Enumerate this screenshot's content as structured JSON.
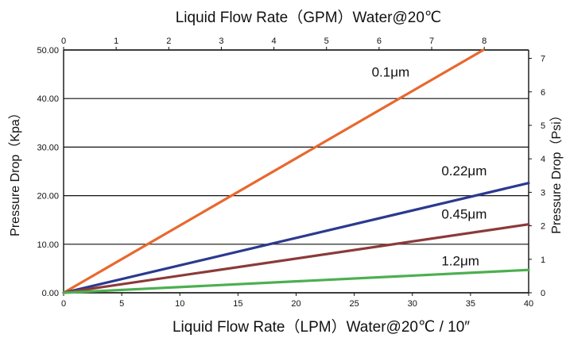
{
  "chart_data": {
    "type": "line",
    "title": "Liquid Flow Rate（GPM）Water@20℃",
    "xlabel": "Liquid Flow Rate（LPM）Water@20℃ / 10″",
    "ylabel": "Pressure Drop（Kpa）",
    "y2label": "Pressure Drop（Psi）",
    "xlim": [
      0,
      40
    ],
    "ylim": [
      0,
      50
    ],
    "x_ticks": [
      "0",
      "5",
      "10",
      "15",
      "20",
      "25",
      "30",
      "35",
      "40"
    ],
    "y_ticks": [
      "0.00",
      "10.00",
      "20.00",
      "30.00",
      "40.00",
      "50.00"
    ],
    "top_ticks": [
      "0",
      "1",
      "2",
      "3",
      "4",
      "5",
      "6",
      "7",
      "8"
    ],
    "top_axis_unit_per_lpm": 0.2211,
    "right_ticks": [
      "0",
      "1",
      "2",
      "3",
      "4",
      "5",
      "6",
      "7"
    ],
    "right_axis_unit_per_kpa": 0.145,
    "grid": "horizontal",
    "series": [
      {
        "name": "0.1μm",
        "color": "#e8682d",
        "x": [
          0,
          36.1
        ],
        "y": [
          0,
          50
        ]
      },
      {
        "name": "0.22μm",
        "color": "#2b3990",
        "x": [
          0,
          40
        ],
        "y": [
          0,
          22.6
        ]
      },
      {
        "name": "0.45μm",
        "color": "#8b3a3a",
        "x": [
          0,
          40
        ],
        "y": [
          0,
          14.1
        ]
      },
      {
        "name": "1.2μm",
        "color": "#4caf50",
        "x": [
          0,
          40
        ],
        "y": [
          0,
          4.7
        ]
      }
    ]
  }
}
